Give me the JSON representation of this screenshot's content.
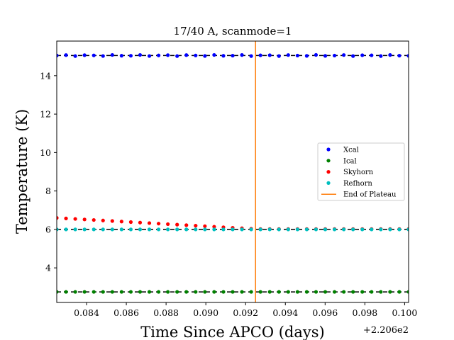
{
  "chart_data": {
    "type": "scatter",
    "title": "17/40 A, scanmode=1",
    "xlabel": "Time Since APCO (days)",
    "ylabel": "Temperature (K)",
    "x_offset_label": "+2.206e2",
    "xlim": [
      220.6825,
      220.7002
    ],
    "ylim": [
      2.2,
      15.8
    ],
    "x_ticks": [
      220.684,
      220.686,
      220.688,
      220.69,
      220.692,
      220.694,
      220.696,
      220.698,
      220.7
    ],
    "x_tick_labels": [
      "0.084",
      "0.086",
      "0.088",
      "0.090",
      "0.092",
      "0.094",
      "0.096",
      "0.098",
      "0.100"
    ],
    "y_ticks": [
      4,
      6,
      8,
      10,
      12,
      14
    ],
    "y_tick_labels": [
      "4",
      "6",
      "8",
      "10",
      "12",
      "14"
    ],
    "grid": false,
    "legend_position": "right",
    "series": [
      {
        "name": "Xcal",
        "color": "#0000ff",
        "kind": "points",
        "y_start": 15.05,
        "y_end": 15.05,
        "ref_line": 15.05,
        "jitter": 0.03
      },
      {
        "name": "Ical",
        "color": "#008000",
        "kind": "points",
        "y_start": 2.75,
        "y_end": 2.75,
        "ref_line": 2.75,
        "jitter": 0.0
      },
      {
        "name": "Skyhorn",
        "color": "#ff0000",
        "kind": "points",
        "y_start": 6.6,
        "y_end": 6.02,
        "decay_end_x": 220.6925,
        "jitter": 0.0
      },
      {
        "name": "Refhorn",
        "color": "#00bfbf",
        "kind": "points",
        "y_start": 6.0,
        "y_end": 6.0,
        "ref_line": 6.0,
        "jitter": 0.0
      },
      {
        "name": "End of Plateau",
        "color": "#ff7f0e",
        "kind": "vline",
        "x": 220.6925
      }
    ],
    "x_points": {
      "start": 220.6825,
      "end": 220.7002,
      "count": 39
    }
  }
}
